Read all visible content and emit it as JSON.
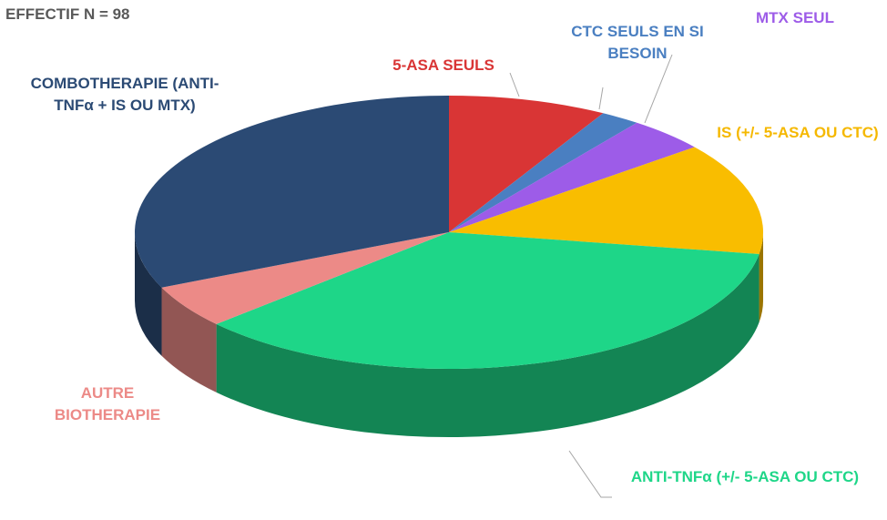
{
  "chart_data": {
    "type": "pie",
    "title": "EFFECTIF N = 98",
    "categories": [
      "5-ASA SEULS",
      "CTC SEULS EN SI BESOIN",
      "MTX SEUL",
      "IS  (+/- 5-ASA OU CTC)",
      "ANTI-TNFα (+/- 5-ASA OU CTC)",
      "AUTRE BIOTHERAPIE",
      "COMBOTHERAPIE (ANTI-TNFα + IS OU MTX)"
    ],
    "values": [
      8,
      2,
      4,
      13,
      35,
      5,
      31
    ],
    "colors": [
      "#d93535",
      "#4a7fc1",
      "#9d5ce8",
      "#f9bd00",
      "#1ed688",
      "#ec8a87",
      "#2b4a74"
    ],
    "label_colors": [
      "#d93535",
      "#4a7fc1",
      "#9d5ce8",
      "#f5b800",
      "#1ed688",
      "#ec8a87",
      "#2b4a74"
    ]
  }
}
